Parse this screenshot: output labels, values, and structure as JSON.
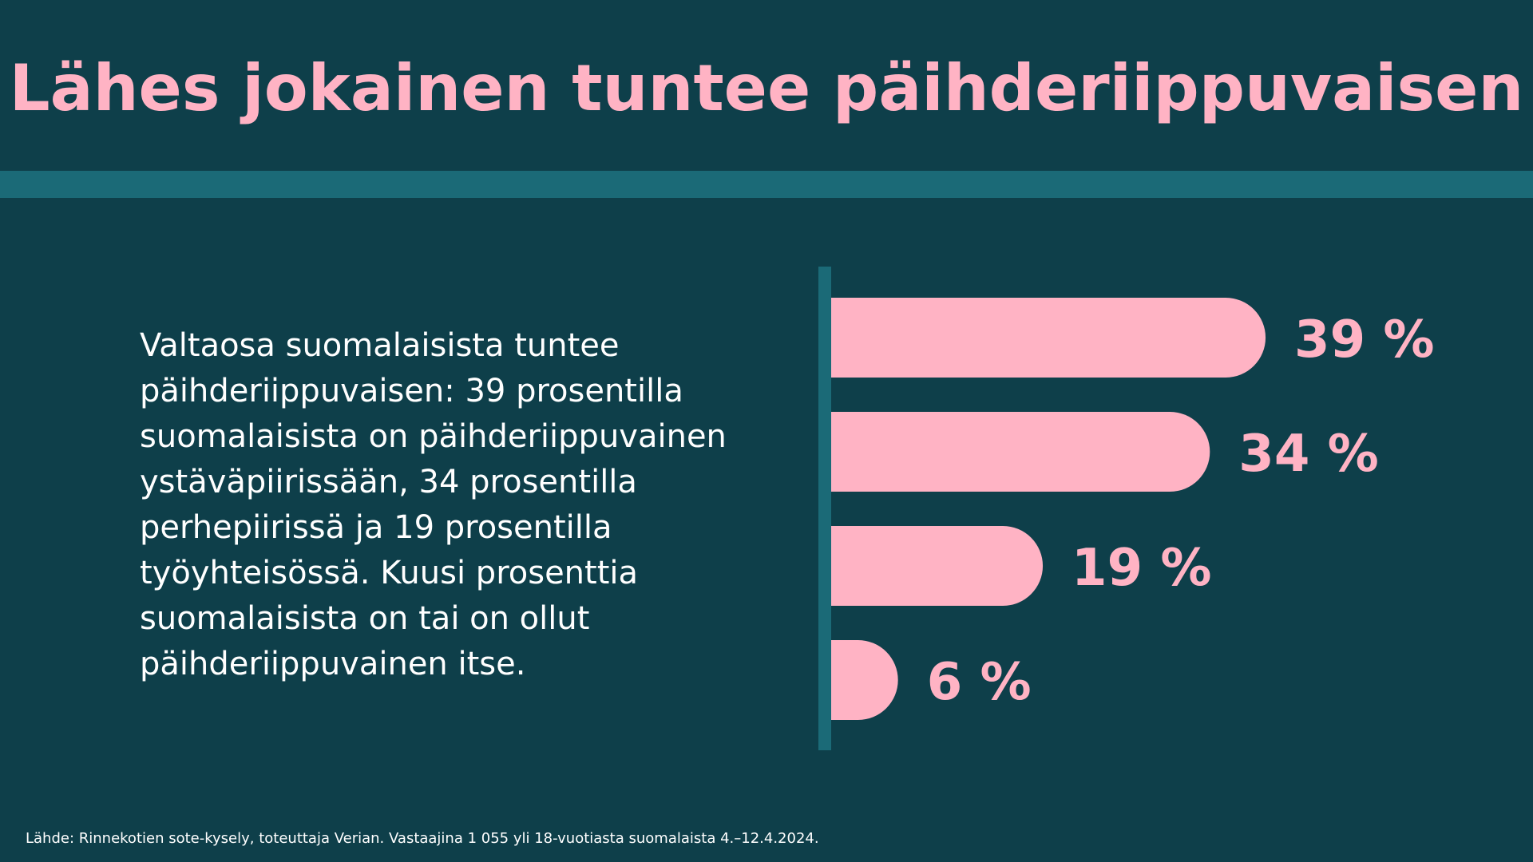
{
  "title": "Lähes jokainen tuntee päihderiippuvaisen",
  "description": "Valtaosa suomalaisista tuntee päihderiippuvaisen: 39 prosentilla suomalaisista on päihderiippuvainen ystäväpiirissään, 34 prosentilla perhepiirissä ja 19 prosentilla työyhteisössä. Kuusi prosenttia suomalaisista on tai on ollut päihderiippuvainen itse.",
  "source": "Lähde: Rinnekotien sote-kysely, toteuttaja Verian. Vastaajina 1 055 yli 18-vuotiasta suomalaista 4.–12.4.2024.",
  "colors": {
    "background": "#0e3f4a",
    "accent_band": "#1b6a77",
    "bar": "#ffb3c4",
    "label": "#ffb3c4",
    "text": "#ffffff"
  },
  "chart_data": {
    "type": "bar",
    "orientation": "horizontal",
    "values": [
      39,
      34,
      19,
      6
    ],
    "value_labels": [
      "39 %",
      "34 %",
      "19 %",
      "6 %"
    ],
    "unit": "%",
    "grid": false
  }
}
